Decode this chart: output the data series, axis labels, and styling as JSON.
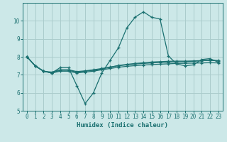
{
  "xlabel": "Humidex (Indice chaleur)",
  "bg_color": "#cce8e8",
  "grid_color": "#aacccc",
  "line_color": "#1a7070",
  "xlim": [
    -0.5,
    23.5
  ],
  "ylim": [
    5,
    11
  ],
  "xticks": [
    0,
    1,
    2,
    3,
    4,
    5,
    6,
    7,
    8,
    9,
    10,
    11,
    12,
    13,
    14,
    15,
    16,
    17,
    18,
    19,
    20,
    21,
    22,
    23
  ],
  "yticks": [
    5,
    6,
    7,
    8,
    9,
    10
  ],
  "lines": [
    [
      8.0,
      7.5,
      7.2,
      7.1,
      7.4,
      7.4,
      6.4,
      5.4,
      6.0,
      7.1,
      7.8,
      8.5,
      9.6,
      10.2,
      10.5,
      10.2,
      10.1,
      8.05,
      7.6,
      7.5,
      7.55,
      7.85,
      7.9,
      7.7
    ],
    [
      8.0,
      7.5,
      7.2,
      7.1,
      7.25,
      7.25,
      7.15,
      7.2,
      7.25,
      7.32,
      7.42,
      7.52,
      7.58,
      7.63,
      7.67,
      7.71,
      7.73,
      7.75,
      7.76,
      7.76,
      7.77,
      7.79,
      7.81,
      7.79
    ],
    [
      8.0,
      7.5,
      7.2,
      7.1,
      7.2,
      7.2,
      7.1,
      7.15,
      7.2,
      7.28,
      7.35,
      7.42,
      7.47,
      7.51,
      7.54,
      7.57,
      7.59,
      7.61,
      7.63,
      7.64,
      7.65,
      7.66,
      7.67,
      7.66
    ],
    [
      8.0,
      7.5,
      7.2,
      7.15,
      7.28,
      7.28,
      7.18,
      7.22,
      7.28,
      7.35,
      7.43,
      7.5,
      7.55,
      7.6,
      7.63,
      7.66,
      7.68,
      7.7,
      7.72,
      7.73,
      7.75,
      7.78,
      7.8,
      7.78
    ]
  ]
}
